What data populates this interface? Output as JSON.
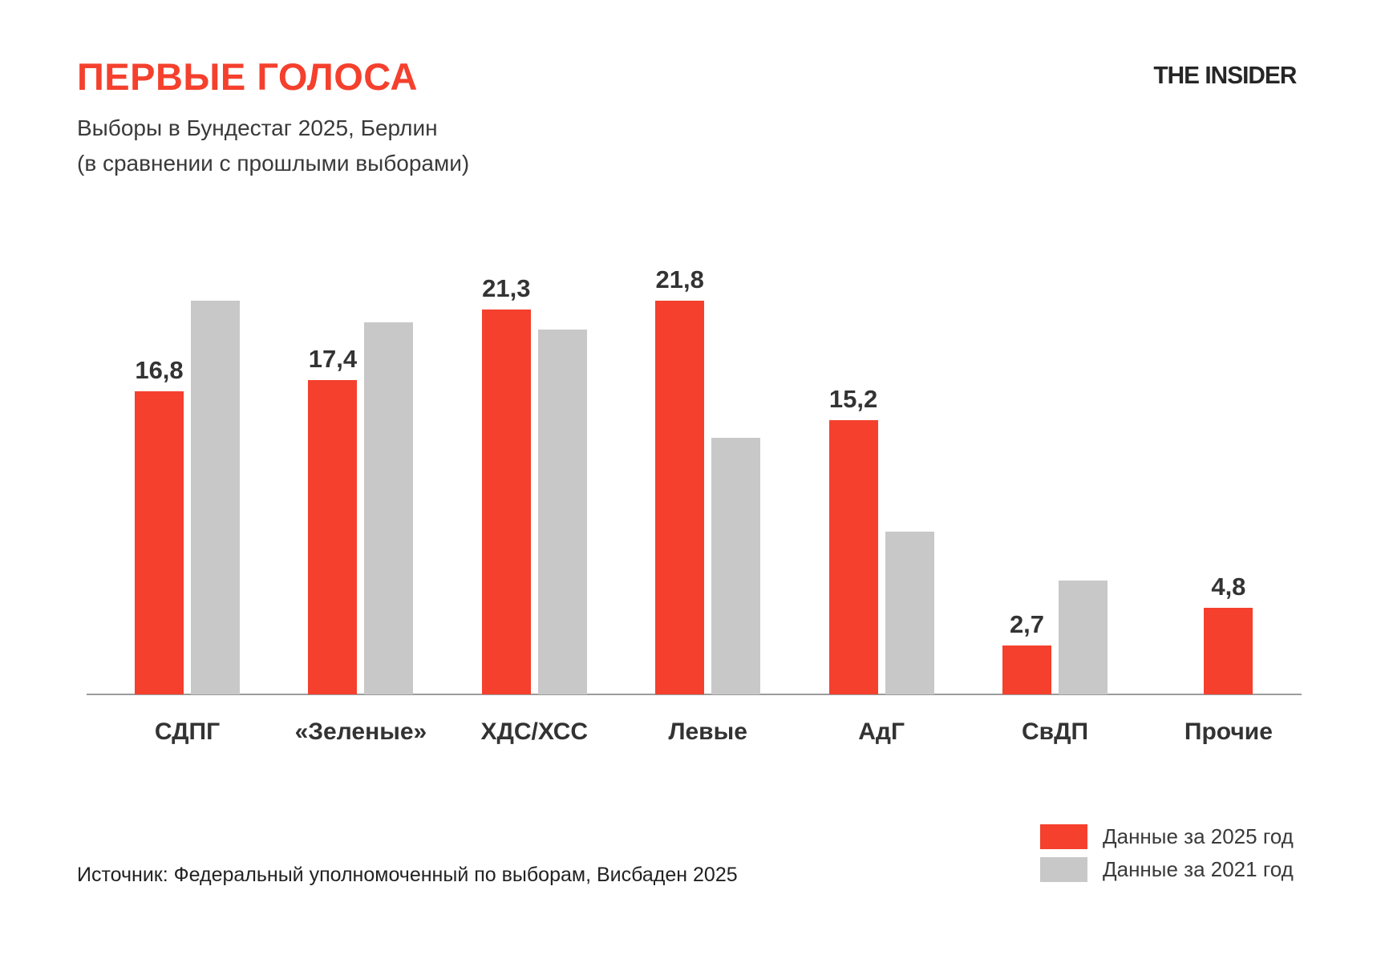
{
  "header": {
    "title": "ПЕРВЫЕ ГОЛОСА",
    "subtitle_line1": "Выборы в Бундестаг 2025, Берлин",
    "subtitle_line2": "(в сравнении с прошлыми выборами)",
    "logo": "THE INSIDER"
  },
  "chart_data": {
    "type": "bar",
    "title": "ПЕРВЫЕ ГОЛОСА — Выборы в Бундестаг 2025, Берлин (в сравнении с прошлыми выборами)",
    "categories": [
      "СДПГ",
      "«Зеленые»",
      "ХДС/ХСС",
      "Левые",
      "АдГ",
      "СвДП",
      "Прочие"
    ],
    "series": [
      {
        "name": "Данные за 2025 год",
        "color": "#f4402d",
        "values": [
          16.8,
          17.4,
          21.3,
          21.8,
          15.2,
          2.7,
          4.8
        ],
        "value_labels": [
          "16,8",
          "17,4",
          "21,3",
          "21,8",
          "15,2",
          "2,7",
          "4,8"
        ]
      },
      {
        "name": "Данные за 2021 год",
        "color": "#c8c8c8",
        "values": [
          21.8,
          20.6,
          20.2,
          14.2,
          9.0,
          6.3,
          null
        ],
        "value_labels": [
          null,
          null,
          null,
          null,
          null,
          null,
          null
        ]
      }
    ],
    "xlabel": "",
    "ylabel": "",
    "ylim": [
      0,
      23
    ],
    "grid": false,
    "y_axis_visible": false,
    "value_labels_shown_for": "2025 series only",
    "legend_position": "bottom-right"
  },
  "legend": {
    "items": [
      {
        "label": "Данные за 2025 год",
        "color": "#f4402d"
      },
      {
        "label": "Данные за 2021 год",
        "color": "#c8c8c8"
      }
    ]
  },
  "source": "Источник: Федеральный уполномоченный по выборам, Висбаден 2025",
  "colors": {
    "accent_red": "#f4402d",
    "bar_gray": "#c8c8c8",
    "axis_gray": "#9b9b9b",
    "text_dark": "#333333",
    "background": "#ffffff"
  }
}
